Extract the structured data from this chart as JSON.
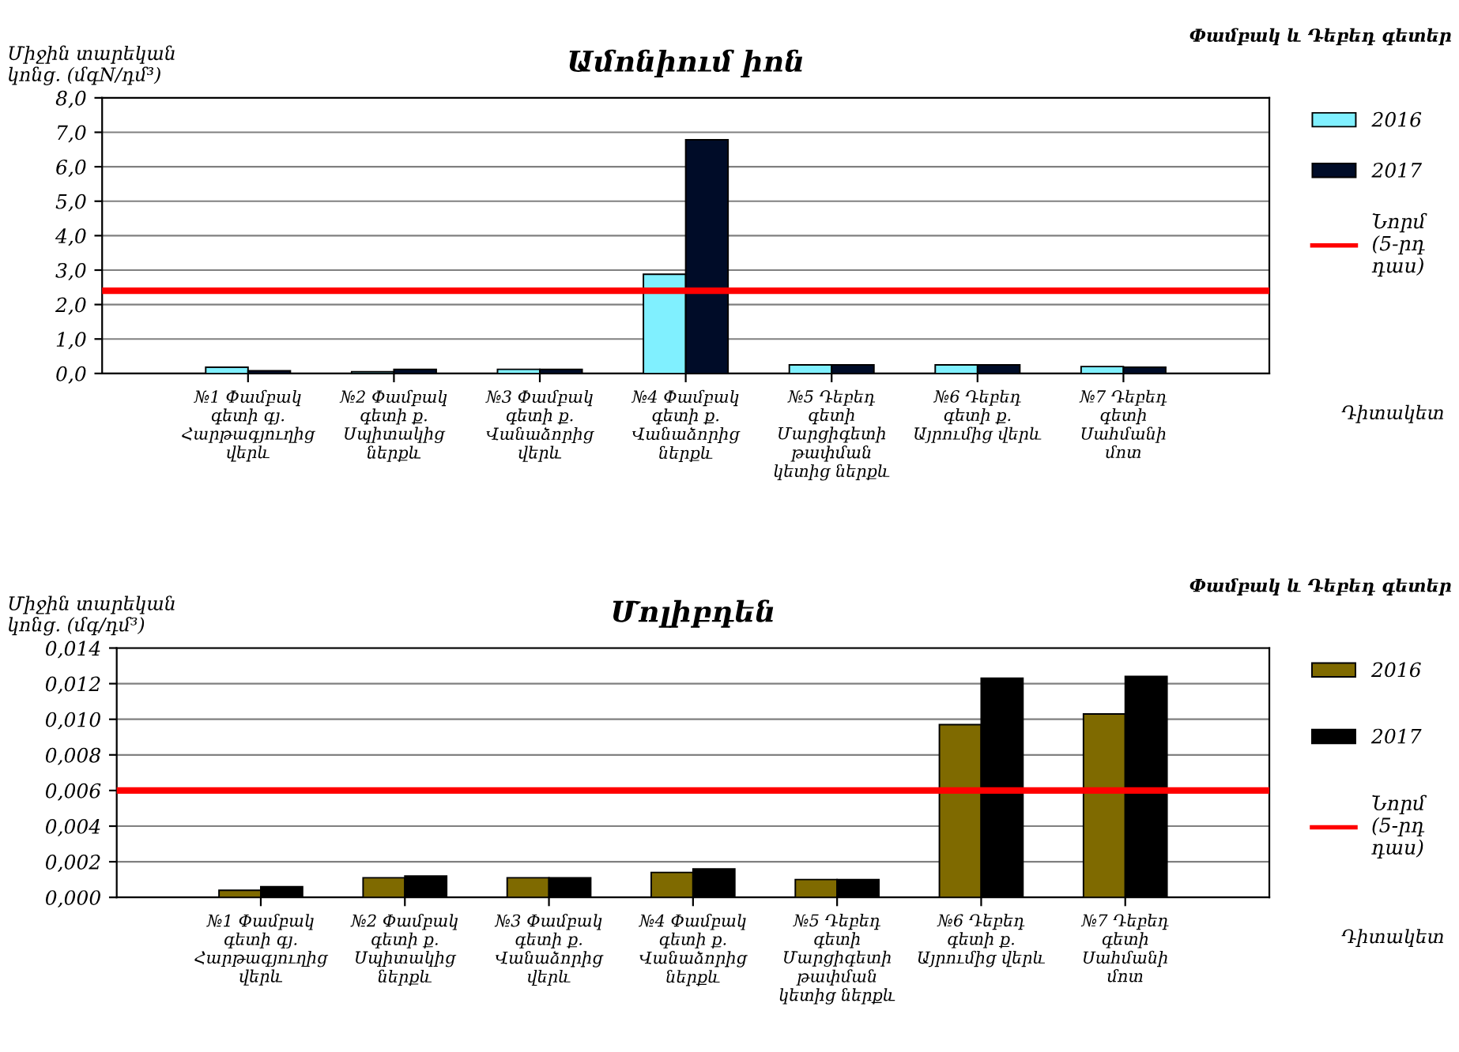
{
  "chart_data": [
    {
      "type": "bar",
      "title": "Ամոնիում իոն",
      "ylabel": "Միջին տարեկան\nկոնց. (մգN/դմ³)",
      "xlabel": "Դիտակետ",
      "annotations": [
        "Փամբակ և Դեբեդ գետեր"
      ],
      "categories": [
        "№1 Փամբակ\nգետի գյ.\nՀարթագյուղից\nվերև",
        "№2 Փամբակ\nգետի ք.\nՍպիտակից\nներքև",
        "№3 Փամբակ\nգետի ք.\nՎանաձորից\nվերև",
        "№4 Փամբակ\nգետի ք.\nՎանաձորից\nներքև",
        "№5 Դեբեդ\nգետի\nՄարցիգետի\nթափման\nկետից ներքև",
        "№6 Դեբեդ\nգետի ք.\nԱյրումից վերև",
        "№7 Դեբեդ\nգետի\nՍահմանի\nմոտ"
      ],
      "series": [
        {
          "name": "2016",
          "color": "#80f0ff",
          "values": [
            0.18,
            0.05,
            0.12,
            2.88,
            0.25,
            0.25,
            0.2
          ]
        },
        {
          "name": "2017",
          "color": "#000c28",
          "values": [
            0.08,
            0.12,
            0.12,
            6.78,
            0.25,
            0.25,
            0.18
          ]
        }
      ],
      "ref_lines": [
        {
          "axis": "y",
          "value": 2.4,
          "label": "Նորմ\n(5-րդ\nդաս)",
          "color": "#ff0000"
        }
      ],
      "ylim": [
        0,
        8
      ],
      "yticks": [
        {
          "value": 0,
          "label": "0,0"
        },
        {
          "value": 1,
          "label": "1,0"
        },
        {
          "value": 2,
          "label": "2,0"
        },
        {
          "value": 3,
          "label": "3,0"
        },
        {
          "value": 4,
          "label": "4,0"
        },
        {
          "value": 5,
          "label": "5,0"
        },
        {
          "value": 6,
          "label": "6,0"
        },
        {
          "value": 7,
          "label": "7,0"
        },
        {
          "value": 8,
          "label": "8,0"
        }
      ],
      "grid": "y",
      "legend": "right"
    },
    {
      "type": "bar",
      "title": "Մոլիբդեն",
      "ylabel": "Միջին տարեկան\nկոնց. (մգ/դմ³)",
      "xlabel": "Դիտակետ",
      "annotations": [
        "Փամբակ և Դեբեդ գետեր"
      ],
      "categories": [
        "№1 Փամբակ\nգետի գյ.\nՀարթագյուղից\nվերև",
        "№2 Փամբակ\nգետի ք.\nՍպիտակից\nներքև",
        "№3 Փամբակ\nգետի ք.\nՎանաձորից\nվերև",
        "№4 Փամբակ\nգետի ք.\nՎանաձորից\nներքև",
        "№5 Դեբեդ\nգետի\nՄարցիգետի\nթափման\nկետից ներքև",
        "№6 Դեբեդ\nգետի ք.\nԱյրումից վերև",
        "№7 Դեբեդ\nգետի\nՍահմանի\nմոտ"
      ],
      "series": [
        {
          "name": "2016",
          "color": "#7f6a00",
          "values": [
            0.0004,
            0.0011,
            0.0011,
            0.0014,
            0.001,
            0.0097,
            0.0103
          ]
        },
        {
          "name": "2017",
          "color": "#000000",
          "values": [
            0.0006,
            0.0012,
            0.0011,
            0.0016,
            0.001,
            0.0123,
            0.0124
          ]
        }
      ],
      "ref_lines": [
        {
          "axis": "y",
          "value": 0.006,
          "label": "Նորմ\n(5-րդ\nդաս)",
          "color": "#ff0000"
        }
      ],
      "ylim": [
        0,
        0.014
      ],
      "yticks": [
        {
          "value": 0,
          "label": "0,000"
        },
        {
          "value": 0.002,
          "label": "0,002"
        },
        {
          "value": 0.004,
          "label": "0,004"
        },
        {
          "value": 0.006,
          "label": "0,006"
        },
        {
          "value": 0.008,
          "label": "0,008"
        },
        {
          "value": 0.01,
          "label": "0,010"
        },
        {
          "value": 0.012,
          "label": "0,012"
        },
        {
          "value": 0.014,
          "label": "0,014"
        }
      ],
      "grid": "y",
      "legend": "right"
    }
  ]
}
